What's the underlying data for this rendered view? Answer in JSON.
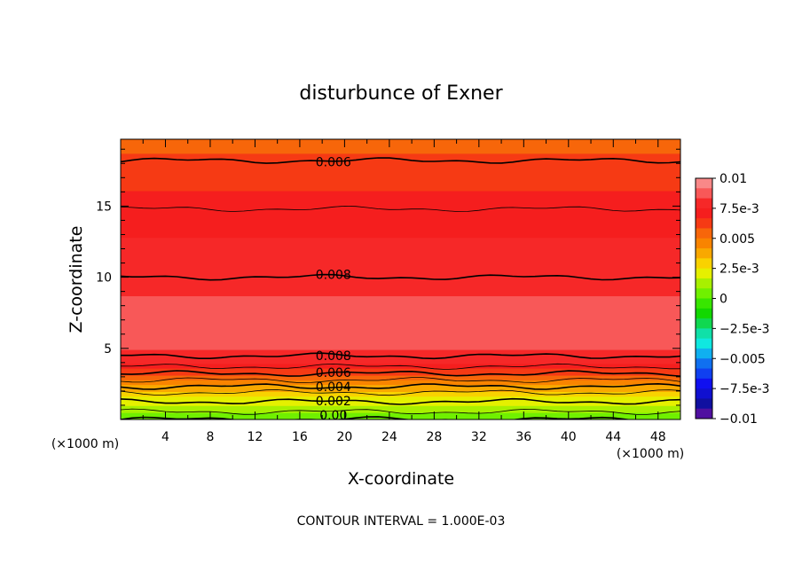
{
  "chart_data": {
    "type": "heatmap",
    "title": "disturbunce of Exner",
    "xlabel": "X-coordinate",
    "ylabel": "Z-coordinate",
    "x_unit_left": "(×1000 m)",
    "x_unit_right": "(×1000 m)",
    "footer": "CONTOUR INTERVAL = 1.000E-03",
    "xlim": [
      0,
      50
    ],
    "ylim": [
      0,
      19.7
    ],
    "x_ticks": [
      4,
      8,
      12,
      16,
      20,
      24,
      28,
      32,
      36,
      40,
      44,
      48
    ],
    "x_tick_labels": [
      "4",
      "8",
      "12",
      "16",
      "20",
      "24",
      "28",
      "32",
      "36",
      "40",
      "44",
      "48"
    ],
    "y_ticks": [
      5,
      10,
      15
    ],
    "y_tick_labels": [
      "5",
      "10",
      "15"
    ],
    "contour_interval": 0.001,
    "contour_labels": [
      {
        "text": "0.006",
        "x": 19,
        "y": 18.1
      },
      {
        "text": "0.008",
        "x": 19,
        "y": 10.2
      },
      {
        "text": "0.008",
        "x": 19,
        "y": 4.5
      },
      {
        "text": "0.006",
        "x": 19,
        "y": 3.3
      },
      {
        "text": "0.004",
        "x": 19,
        "y": 2.3
      },
      {
        "text": "0.002",
        "x": 19,
        "y": 1.3
      },
      {
        "text": "0.00",
        "x": 19,
        "y": 0.3
      }
    ],
    "field_profile": [
      {
        "z": 0.0,
        "value": 0.0
      },
      {
        "z": 0.4,
        "value": 0.0008
      },
      {
        "z": 0.9,
        "value": 0.0015
      },
      {
        "z": 1.4,
        "value": 0.0022
      },
      {
        "z": 1.9,
        "value": 0.003
      },
      {
        "z": 2.4,
        "value": 0.0042
      },
      {
        "z": 3.0,
        "value": 0.0055
      },
      {
        "z": 3.6,
        "value": 0.0068
      },
      {
        "z": 4.2,
        "value": 0.0078
      },
      {
        "z": 4.6,
        "value": 0.0081
      },
      {
        "z": 5.2,
        "value": 0.0085
      },
      {
        "z": 6.3,
        "value": 0.0089
      },
      {
        "z": 8.0,
        "value": 0.0085
      },
      {
        "z": 10.0,
        "value": 0.008
      },
      {
        "z": 12.5,
        "value": 0.0076
      },
      {
        "z": 14.0,
        "value": 0.0072
      },
      {
        "z": 16.0,
        "value": 0.0067
      },
      {
        "z": 18.2,
        "value": 0.006
      },
      {
        "z": 19.7,
        "value": 0.0055
      }
    ],
    "colorbar": {
      "range": [
        -0.01,
        0.01
      ],
      "tick_labels": [
        "0.01",
        "7.5e-3",
        "0.005",
        "2.5e-3",
        "0",
        "−2.5e-3",
        "−0.005",
        "−7.5e-3",
        "−0.01"
      ],
      "tick_values": [
        0.01,
        0.0075,
        0.005,
        0.0025,
        0,
        -0.0025,
        -0.005,
        -0.0075,
        -0.01
      ],
      "colors": [
        "#f98888",
        "#f85858",
        "#f62828",
        "#f51e1e",
        "#f63a14",
        "#f7660a",
        "#f98400",
        "#f9a800",
        "#f9d200",
        "#e5f000",
        "#a8f000",
        "#70f000",
        "#38e600",
        "#12d800",
        "#10d850",
        "#10e0a8",
        "#10e8e0",
        "#10b0f0",
        "#1070f0",
        "#1040f0",
        "#1010f0",
        "#1010d0",
        "#1010a0",
        "#5010a0"
      ]
    }
  }
}
